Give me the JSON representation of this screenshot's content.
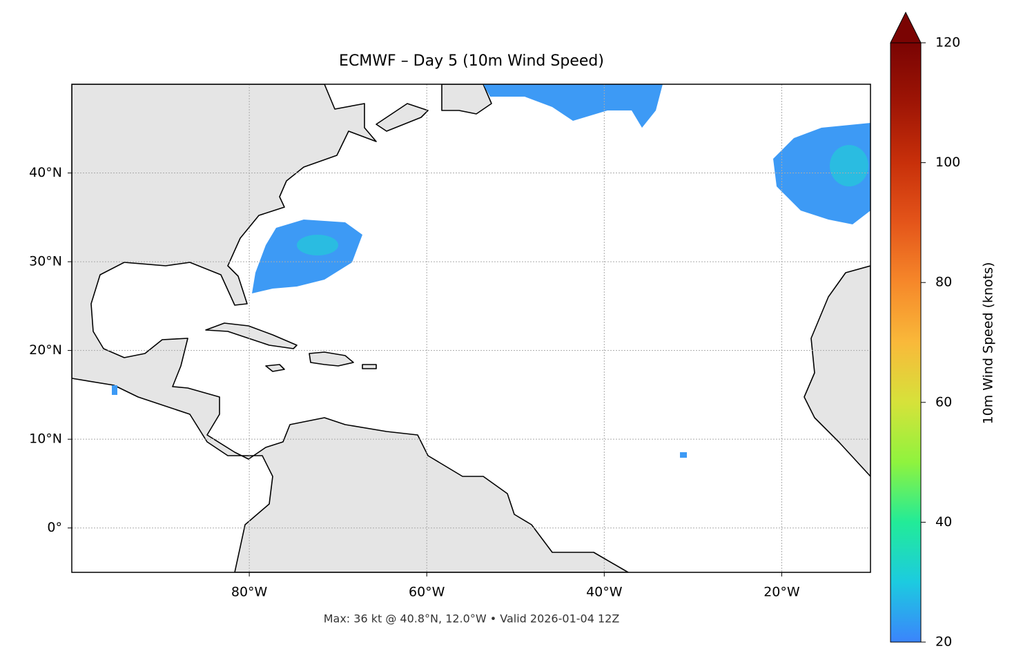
{
  "title": "ECMWF – Day 5 (10m Wind Speed)",
  "map": {
    "lon_range": [
      -100,
      -10
    ],
    "lat_range": [
      -5,
      50
    ],
    "lon_ticks": [
      {
        "value": -80,
        "label": "80°W"
      },
      {
        "value": -60,
        "label": "60°W"
      },
      {
        "value": -40,
        "label": "40°W"
      },
      {
        "value": -20,
        "label": "20°W"
      }
    ],
    "lat_ticks": [
      {
        "value": 0,
        "label": "0°"
      },
      {
        "value": 10,
        "label": "10°N"
      },
      {
        "value": 20,
        "label": "20°N"
      },
      {
        "value": 30,
        "label": "30°N"
      },
      {
        "value": 40,
        "label": "40°N"
      }
    ]
  },
  "colorbar": {
    "label": "10m Wind Speed (knots)",
    "lim": [
      20,
      120
    ],
    "ticks": [
      20,
      40,
      60,
      80,
      100,
      120
    ]
  },
  "footer": "Max: 36 kt @ 40.8°N, 12.0°W • Valid 2026-01-04 12Z"
}
